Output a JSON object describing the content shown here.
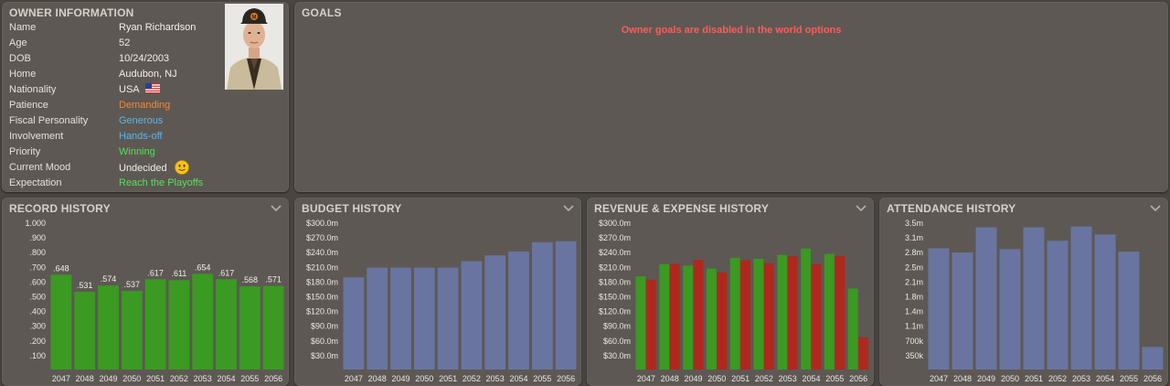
{
  "owner": {
    "title": "OWNER INFORMATION",
    "rows": [
      {
        "label": "Name",
        "value": "Ryan Richardson"
      },
      {
        "label": "Age",
        "value": "52"
      },
      {
        "label": "DOB",
        "value": "10/24/2003"
      },
      {
        "label": "Home",
        "value": "Audubon, NJ"
      },
      {
        "label": "Nationality",
        "value": "USA"
      },
      {
        "label": "Patience",
        "value": "Demanding"
      },
      {
        "label": "Fiscal Personality",
        "value": "Generous"
      },
      {
        "label": "Involvement",
        "value": "Hands-off"
      },
      {
        "label": "Priority",
        "value": "Winning"
      },
      {
        "label": "Current Mood",
        "value": "Undecided"
      },
      {
        "label": "Expectation",
        "value": "Reach the Playoffs"
      }
    ],
    "flag_icon": "us-flag-icon",
    "mood_icon": "neutral-face-icon"
  },
  "goals": {
    "title": "GOALS",
    "message": "Owner goals are disabled in the world options"
  },
  "colors": {
    "green": "#3a9a22",
    "red": "#b0281d",
    "blue": "#6975a0",
    "value_orange": "#f2883a",
    "value_blue": "#5fb4ec",
    "value_green": "#57e05a",
    "goal_red": "#ff5b5b"
  },
  "chart_data": [
    {
      "id": "record",
      "title": "RECORD HISTORY",
      "type": "bar",
      "categories": [
        "2047",
        "2048",
        "2049",
        "2050",
        "2051",
        "2052",
        "2053",
        "2054",
        "2055",
        "2056"
      ],
      "values": [
        0.648,
        0.531,
        0.574,
        0.537,
        0.617,
        0.611,
        0.654,
        0.617,
        0.568,
        0.571
      ],
      "data_labels": [
        ".648",
        ".531",
        ".574",
        ".537",
        ".617",
        ".611",
        ".654",
        ".617",
        ".568",
        ".571"
      ],
      "yticks": [
        "1.000",
        ".900",
        ".800",
        ".700",
        ".600",
        ".500",
        ".400",
        ".300",
        ".200",
        ".100"
      ],
      "ylim": [
        0,
        1.0
      ]
    },
    {
      "id": "budget",
      "title": "BUDGET HISTORY",
      "type": "bar",
      "categories": [
        "2047",
        "2048",
        "2049",
        "2050",
        "2051",
        "2052",
        "2053",
        "2054",
        "2055",
        "2056"
      ],
      "values": [
        189,
        209,
        209,
        209,
        209,
        222,
        234,
        242,
        261,
        263
      ],
      "yticks": [
        "$300.0m",
        "$270.0m",
        "$240.0m",
        "$210.0m",
        "$180.0m",
        "$150.0m",
        "$120.0m",
        "$90.0m",
        "$60.0m",
        "$30.0m"
      ],
      "ylim": [
        0,
        300
      ]
    },
    {
      "id": "revexp",
      "title": "REVENUE & EXPENSE HISTORY",
      "type": "bar",
      "categories": [
        "2047",
        "2048",
        "2049",
        "2050",
        "2051",
        "2052",
        "2053",
        "2054",
        "2055",
        "2056"
      ],
      "series": [
        {
          "values": [
            191,
            216,
            213,
            207,
            229,
            227,
            235,
            248,
            237,
            166
          ]
        },
        {
          "values": [
            184,
            217,
            225,
            199,
            224,
            218,
            232,
            216,
            233,
            66
          ]
        }
      ],
      "yticks": [
        "$300.0m",
        "$270.0m",
        "$240.0m",
        "$210.0m",
        "$180.0m",
        "$150.0m",
        "$120.0m",
        "$90.0m",
        "$60.0m",
        "$30.0m"
      ],
      "ylim": [
        0,
        300
      ]
    },
    {
      "id": "attendance",
      "title": "ATTENDANCE HISTORY",
      "type": "bar",
      "categories": [
        "2047",
        "2048",
        "2049",
        "2050",
        "2051",
        "2052",
        "2053",
        "2054",
        "2055",
        "2056"
      ],
      "values": [
        2900000,
        2800000,
        3400000,
        2880000,
        3400000,
        3080000,
        3420000,
        3230000,
        2820000,
        540000
      ],
      "yticks": [
        "3.5m",
        "3.1m",
        "2.8m",
        "2.5m",
        "2.1m",
        "1.8m",
        "1.4m",
        "1.1m",
        "700k",
        "350k"
      ],
      "ylim": [
        0,
        3500000
      ]
    }
  ]
}
